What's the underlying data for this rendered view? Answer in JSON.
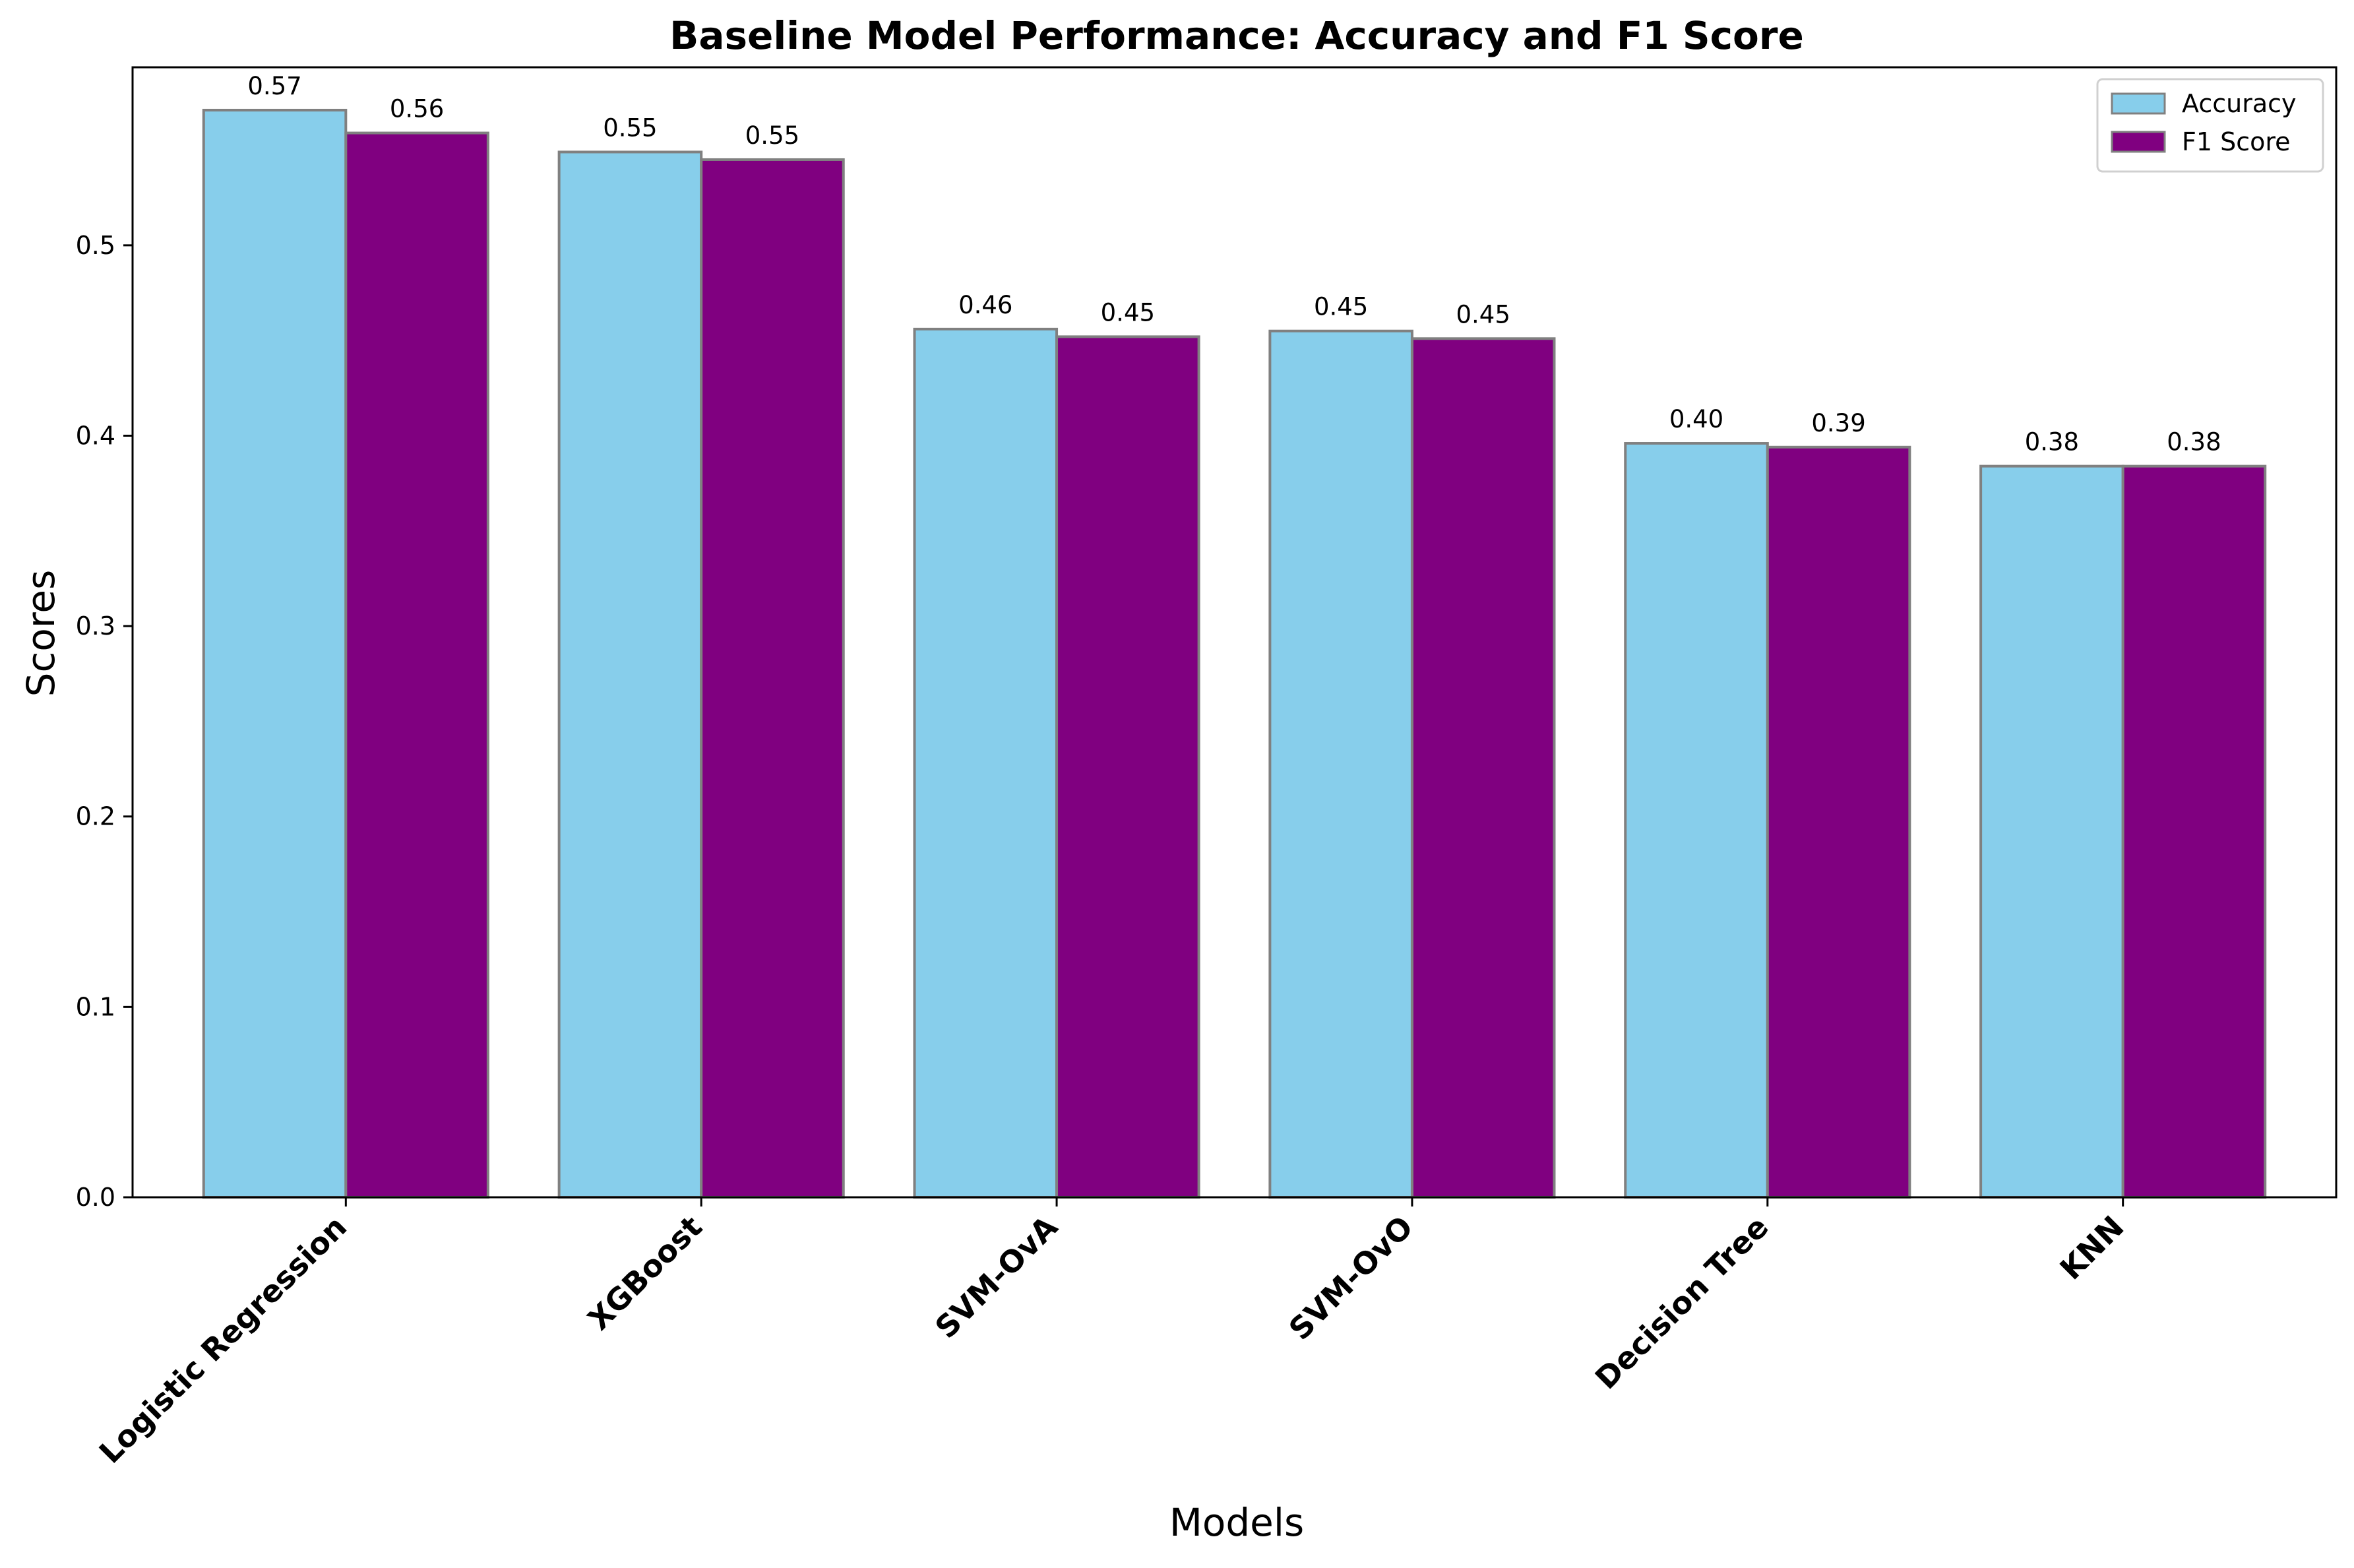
{
  "chart_data": {
    "type": "bar",
    "title": "Baseline Model Performance: Accuracy and F1 Score",
    "xlabel": "Models",
    "ylabel": "Scores",
    "categories": [
      "Logistic Regression",
      "XGBoost",
      "SVM-OvA",
      "SVM-OvO",
      "Decision Tree",
      "KNN"
    ],
    "series": [
      {
        "name": "Accuracy",
        "color": "#87CEEB",
        "values": [
          0.571,
          0.549,
          0.456,
          0.455,
          0.396,
          0.384
        ],
        "labels": [
          "0.57",
          "0.55",
          "0.46",
          "0.45",
          "0.40",
          "0.38"
        ]
      },
      {
        "name": "F1 Score",
        "color": "#800080",
        "values": [
          0.559,
          0.545,
          0.452,
          0.451,
          0.394,
          0.384
        ],
        "labels": [
          "0.56",
          "0.55",
          "0.45",
          "0.45",
          "0.39",
          "0.38"
        ]
      }
    ],
    "ylim": [
      0,
      0.5935
    ],
    "yticks": [
      "0.0",
      "0.1",
      "0.2",
      "0.3",
      "0.4",
      "0.5"
    ],
    "ytick_values": [
      0,
      0.1,
      0.2,
      0.3,
      0.4,
      0.5
    ],
    "grid": false,
    "legend_position": "top-right",
    "bar_edge_color": "#808080"
  }
}
